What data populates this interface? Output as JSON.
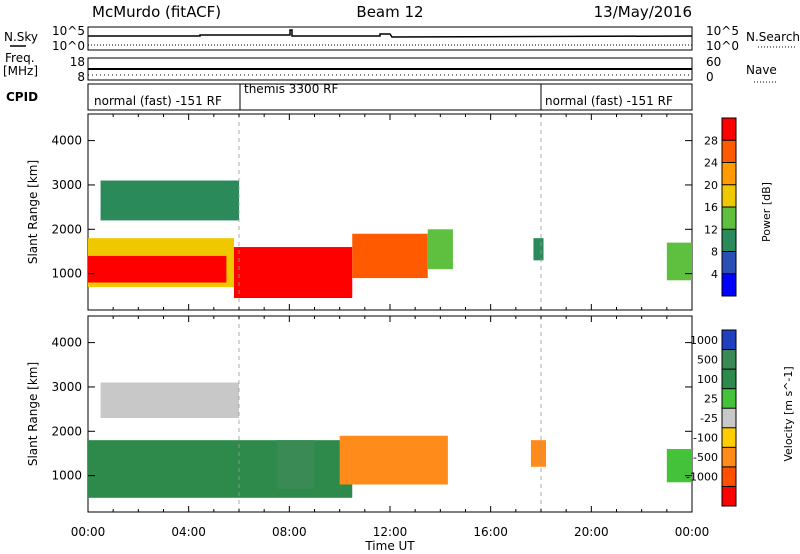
{
  "header": {
    "station": "McMurdo (fitACF)",
    "beam": "Beam 12",
    "date": "13/May/2016"
  },
  "aux_panels": {
    "nsky_label": "N.Sky",
    "nsky_ticks": [
      "10^5",
      "10^0"
    ],
    "nsearch_label": "N.Search",
    "nsearch_ticks": [
      "10^5",
      "10^0"
    ],
    "freq_label": "Freq.",
    "freq_unit": "[MHz]",
    "freq_ticks": [
      "18",
      "8"
    ],
    "nave_label": "Nave",
    "nave_ticks": [
      "60",
      "0"
    ],
    "cpid_label": "CPID",
    "cpid_segments": [
      {
        "label": "normal (fast) -151 RF",
        "start_hour": 0,
        "end_hour": 6
      },
      {
        "label": "themis 3300 RF",
        "start_hour": 6,
        "end_hour": 18
      },
      {
        "label": "normal (fast) -151 RF",
        "start_hour": 18,
        "end_hour": 24
      }
    ]
  },
  "chart_data": [
    {
      "type": "heatmap",
      "title": "Power",
      "ylabel": "Slant Range [km]",
      "xlabel": "Time UT",
      "xlim": [
        0,
        24
      ],
      "ylim": [
        180,
        4600
      ],
      "x_ticks": [
        "00:00",
        "04:00",
        "08:00",
        "12:00",
        "16:00",
        "20:00",
        "00:00"
      ],
      "y_ticks": [
        1000,
        2000,
        3000,
        4000
      ],
      "colorbar": {
        "label": "Power [dB]",
        "range": [
          0,
          32
        ],
        "ticks": [
          4,
          8,
          12,
          16,
          20,
          24,
          28
        ],
        "colors": [
          "#0000ff",
          "#2a50b8",
          "#2a8a5a",
          "#5fc040",
          "#f0c800",
          "#ff9a00",
          "#ff5a00",
          "#ff0000"
        ]
      },
      "regions": [
        {
          "t_start": 0.0,
          "t_end": 5.8,
          "r_low": 700,
          "r_high": 1800,
          "value": 16
        },
        {
          "t_start": 0.0,
          "t_end": 5.5,
          "r_low": 800,
          "r_high": 1400,
          "value": 28
        },
        {
          "t_start": 5.8,
          "t_end": 10.5,
          "r_low": 450,
          "r_high": 1600,
          "value": 30
        },
        {
          "t_start": 10.5,
          "t_end": 13.5,
          "r_low": 900,
          "r_high": 1900,
          "value": 24
        },
        {
          "t_start": 13.5,
          "t_end": 14.5,
          "r_low": 1100,
          "r_high": 2000,
          "value": 12
        },
        {
          "t_start": 23.0,
          "t_end": 24.0,
          "r_low": 850,
          "r_high": 1700,
          "value": 12
        },
        {
          "t_start": 0.5,
          "t_end": 6.0,
          "r_low": 2200,
          "r_high": 3100,
          "value": 10
        },
        {
          "t_start": 17.7,
          "t_end": 18.1,
          "r_low": 1300,
          "r_high": 1800,
          "value": 10
        }
      ]
    },
    {
      "type": "heatmap",
      "title": "Velocity",
      "ylabel": "Slant Range [km]",
      "xlabel": "Time UT",
      "xlim": [
        0,
        24
      ],
      "ylim": [
        180,
        4600
      ],
      "x_ticks": [
        "00:00",
        "04:00",
        "08:00",
        "12:00",
        "16:00",
        "20:00",
        "00:00"
      ],
      "y_ticks": [
        1000,
        2000,
        3000,
        4000
      ],
      "colorbar": {
        "label": "Velocity [m s^-1]",
        "ticks": [
          "1000",
          "500",
          "100",
          "25",
          "-25",
          "-100",
          "-500",
          "-1000"
        ],
        "colors": [
          "#1f3fbf",
          "#3a8a55",
          "#2d8a4a",
          "#44c23a",
          "#c8c8c8",
          "#ffcc00",
          "#ff8c1a",
          "#ff5000",
          "#ff0000"
        ]
      },
      "regions": [
        {
          "t_start": 0.0,
          "t_end": 10.5,
          "r_low": 500,
          "r_high": 1800,
          "value": 150
        },
        {
          "t_start": 7.5,
          "t_end": 9.0,
          "r_low": 700,
          "r_high": 1800,
          "value": 600
        },
        {
          "t_start": 10.0,
          "t_end": 14.3,
          "r_low": 800,
          "r_high": 1900,
          "value": -300
        },
        {
          "t_start": 0.5,
          "t_end": 6.0,
          "r_low": 2300,
          "r_high": 3100,
          "value": 20
        },
        {
          "t_start": 17.6,
          "t_end": 18.2,
          "r_low": 1200,
          "r_high": 1800,
          "value": -300
        },
        {
          "t_start": 23.0,
          "t_end": 24.0,
          "r_low": 850,
          "r_high": 1600,
          "value": 80
        }
      ]
    }
  ]
}
